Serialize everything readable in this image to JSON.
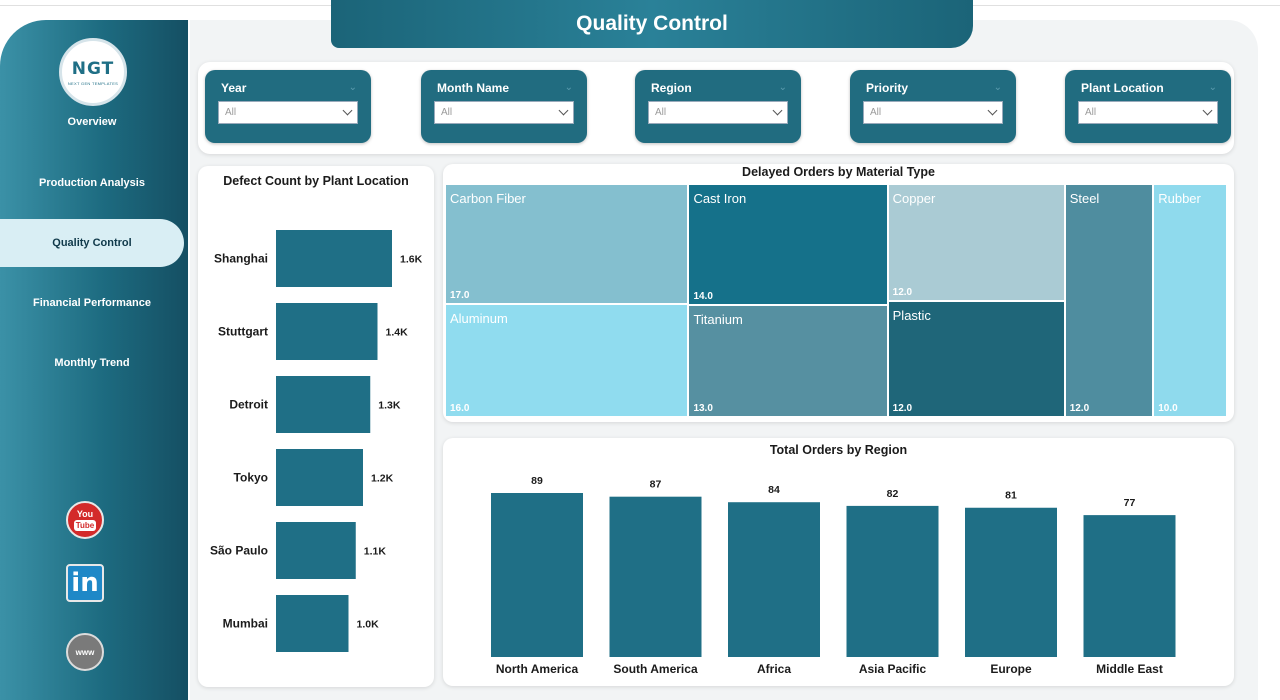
{
  "page_title": "Quality Control",
  "logo": {
    "text": "NGT",
    "subtext": "NEXT GEN TEMPLATES"
  },
  "nav": [
    {
      "label": "Overview",
      "active": false
    },
    {
      "label": "Production Analysis",
      "active": false
    },
    {
      "label": "Quality Control",
      "active": true
    },
    {
      "label": "Financial Performance",
      "active": false
    },
    {
      "label": "Monthly Trend",
      "active": false
    }
  ],
  "social": {
    "youtube_top": "You",
    "youtube_bottom": "Tube",
    "linkedin": "in",
    "web": "www"
  },
  "filters": [
    {
      "label": "Year",
      "value": "All"
    },
    {
      "label": "Month Name",
      "value": "All"
    },
    {
      "label": "Region",
      "value": "All"
    },
    {
      "label": "Priority",
      "value": "All"
    },
    {
      "label": "Plant Location",
      "value": "All"
    }
  ],
  "colors": {
    "primary": "#216c80",
    "bar": "#1f6f86",
    "tm_carbon_fiber": "#84bfcf",
    "tm_cast_iron": "#15718a",
    "tm_copper": "#aacbd4",
    "tm_steel": "#4f8d9f",
    "tm_rubber": "#8fdaed",
    "tm_aluminum": "#90dcef",
    "tm_titanium": "#5690a1",
    "tm_plastic": "#1f6679"
  },
  "chart_data": [
    {
      "type": "bar",
      "orientation": "horizontal",
      "title": "Defect Count by Plant Location",
      "categories": [
        "Shanghai",
        "Stuttgart",
        "Detroit",
        "Tokyo",
        "São Paulo",
        "Mumbai"
      ],
      "values": [
        1600,
        1400,
        1300,
        1200,
        1100,
        1000
      ],
      "data_labels": [
        "1.6K",
        "1.4K",
        "1.3K",
        "1.2K",
        "1.1K",
        "1.0K"
      ],
      "xlim": [
        0,
        1600
      ]
    },
    {
      "type": "treemap",
      "title": "Delayed Orders by Material Type",
      "items": [
        {
          "name": "Carbon Fiber",
          "value": 17.0,
          "label": "17.0"
        },
        {
          "name": "Aluminum",
          "value": 16.0,
          "label": "16.0"
        },
        {
          "name": "Cast Iron",
          "value": 14.0,
          "label": "14.0"
        },
        {
          "name": "Titanium",
          "value": 13.0,
          "label": "13.0"
        },
        {
          "name": "Copper",
          "value": 12.0,
          "label": "12.0"
        },
        {
          "name": "Plastic",
          "value": 12.0,
          "label": "12.0"
        },
        {
          "name": "Steel",
          "value": 12.0,
          "label": "12.0"
        },
        {
          "name": "Rubber",
          "value": 10.0,
          "label": "10.0"
        }
      ]
    },
    {
      "type": "bar",
      "orientation": "vertical",
      "title": "Total Orders by Region",
      "categories": [
        "North America",
        "South America",
        "Africa",
        "Asia Pacific",
        "Europe",
        "Middle East"
      ],
      "values": [
        89,
        87,
        84,
        82,
        81,
        77
      ],
      "ylim": [
        0,
        89
      ]
    }
  ]
}
